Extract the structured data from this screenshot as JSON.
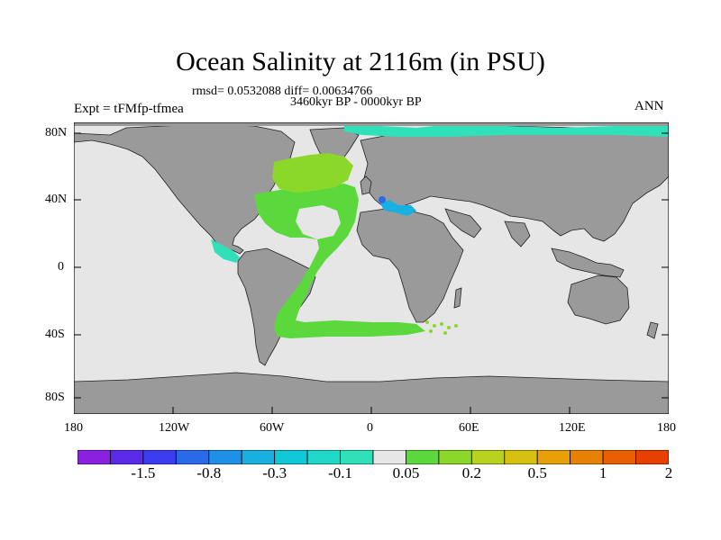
{
  "title": "Ocean Salinity at 2116m (in PSU)",
  "stats": "rmsd= 0.0532088 diff= 0.00634766",
  "period": "3460kyr BP - 0000kyr BP",
  "experiment": "Expt = tFMfp-tfmea",
  "season": "ANN",
  "lat_labels": [
    "80N",
    "40N",
    "0",
    "40S",
    "80S"
  ],
  "lon_labels": [
    "180",
    "120W",
    "60W",
    "0",
    "60E",
    "120E",
    "180"
  ],
  "colorbar": {
    "colors": [
      "#8a20e0",
      "#5a2ae8",
      "#3c3cf0",
      "#2a6ae8",
      "#1e90e8",
      "#18b0e0",
      "#10c8d8",
      "#20d8c8",
      "#30e0b8",
      "#e6e6e6",
      "#5ad83c",
      "#8cd82a",
      "#b8d21e",
      "#d8c010",
      "#e8a008",
      "#e88004",
      "#e86002",
      "#e84000"
    ],
    "labels": [
      "-1.5",
      "-0.8",
      "-0.3",
      "-0.1",
      "0.05",
      "0.2",
      "0.5",
      "1",
      "2"
    ]
  },
  "colors": {
    "land": "#9a9a9a",
    "ocean_neutral": "#e6e6e6",
    "atlantic_positive": "#5ad83c",
    "north_atlantic": "#8cd82a",
    "negative_light": "#30e0b8",
    "negative_med": "#1e90e8"
  }
}
